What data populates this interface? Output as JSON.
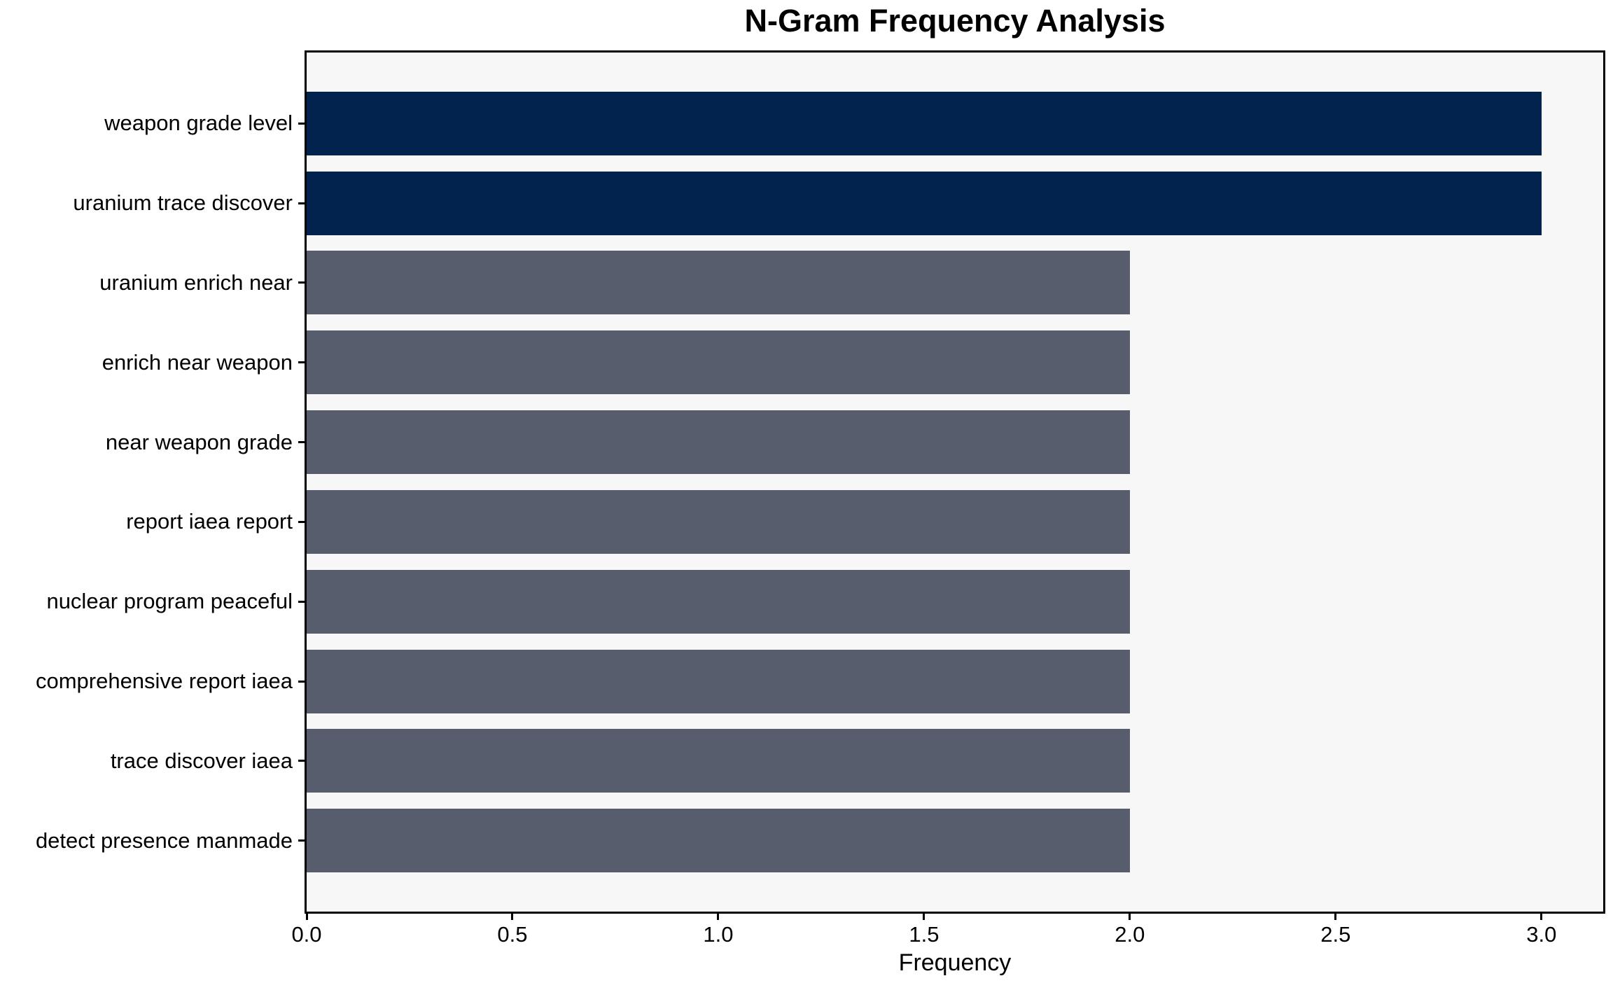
{
  "chart_data": {
    "type": "bar",
    "orientation": "horizontal",
    "title": "N-Gram Frequency Analysis",
    "xlabel": "Frequency",
    "ylabel": "",
    "categories": [
      "weapon grade level",
      "uranium trace discover",
      "uranium enrich near",
      "enrich near weapon",
      "near weapon grade",
      "report iaea report",
      "nuclear program peaceful",
      "comprehensive report iaea",
      "trace discover iaea",
      "detect presence manmade"
    ],
    "values": [
      3,
      3,
      2,
      2,
      2,
      2,
      2,
      2,
      2,
      2
    ],
    "bar_colors": [
      "#02234d",
      "#02234d",
      "#575d6c",
      "#575d6c",
      "#575d6c",
      "#575d6c",
      "#575d6c",
      "#575d6c",
      "#575d6c",
      "#575d6c"
    ],
    "xlim": [
      0,
      3.15
    ],
    "xticks": [
      0.0,
      0.5,
      1.0,
      1.5,
      2.0,
      2.5,
      3.0
    ],
    "xtick_labels": [
      "0.0",
      "0.5",
      "1.0",
      "1.5",
      "2.0",
      "2.5",
      "3.0"
    ],
    "grid": false,
    "legend": "none",
    "plot_background": "#f7f7f8",
    "figure_background": "#ffffff",
    "spine_color": "#000000",
    "highlight_color": "#02234d",
    "default_bar_color": "#575d6c",
    "bar_height_fraction": 0.8
  }
}
